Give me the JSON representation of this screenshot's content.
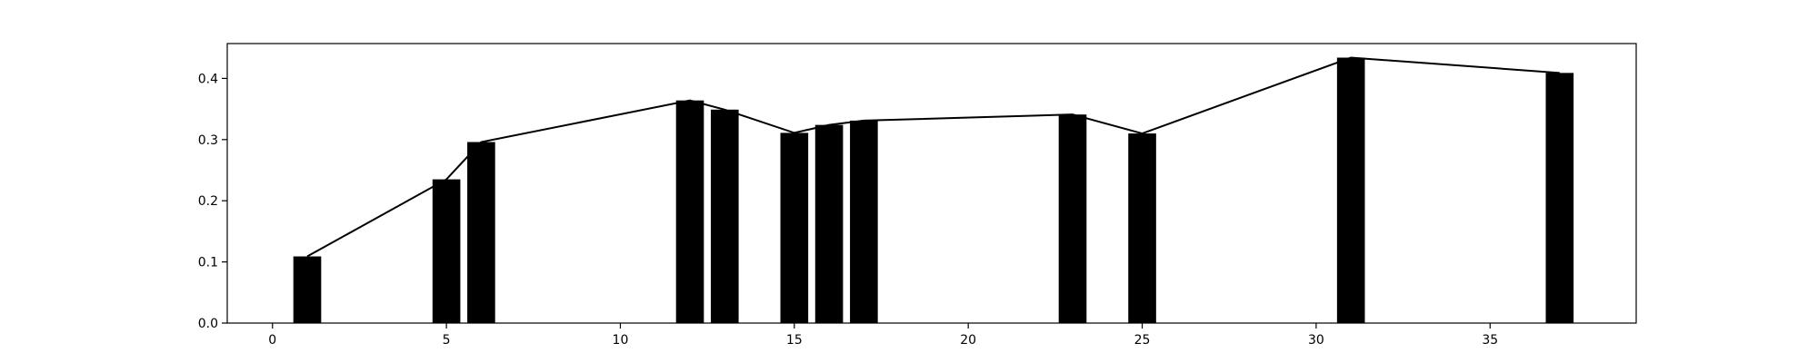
{
  "chart_data": {
    "type": "bar",
    "title": "",
    "xlabel": "",
    "ylabel": "",
    "xlim": [
      -1.3,
      39.2
    ],
    "ylim": [
      0,
      0.457
    ],
    "x_ticks": [
      0,
      5,
      10,
      15,
      20,
      25,
      30,
      35
    ],
    "x_tick_labels": [
      "0",
      "5",
      "10",
      "15",
      "20",
      "25",
      "30",
      "35"
    ],
    "y_ticks": [
      0.0,
      0.1,
      0.2,
      0.3,
      0.4
    ],
    "y_tick_labels": [
      "0.0",
      "0.1",
      "0.2",
      "0.3",
      "0.4"
    ],
    "grid": false,
    "bar_width": 0.8,
    "series": [
      {
        "type": "bar",
        "color": "#000000",
        "x": [
          1,
          5,
          6,
          12,
          13,
          15,
          16,
          17,
          23,
          25,
          31,
          37
        ],
        "values": [
          0.109,
          0.235,
          0.296,
          0.364,
          0.349,
          0.311,
          0.324,
          0.331,
          0.341,
          0.31,
          0.434,
          0.409
        ]
      },
      {
        "type": "line",
        "color": "#000000",
        "x": [
          1,
          5,
          6,
          12,
          13,
          15,
          16,
          17,
          23,
          25,
          31,
          37
        ],
        "values": [
          0.109,
          0.235,
          0.296,
          0.364,
          0.349,
          0.311,
          0.324,
          0.331,
          0.341,
          0.31,
          0.434,
          0.409
        ]
      }
    ]
  }
}
